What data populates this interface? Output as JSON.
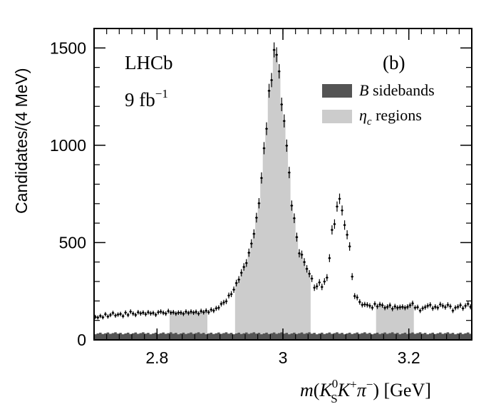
{
  "chart_data": {
    "type": "histogram",
    "experiment": "LHCb",
    "luminosity": "9 fb",
    "luminosity_exp": "−1",
    "panel_label": "(b)",
    "ylabel": "Candidates/(4 MeV)",
    "xlabel": "m(K_S^0 K^+ π^-) [GeV]",
    "xlabel_parts": {
      "m": "m",
      "open": "(",
      "K": "K",
      "sup0": "0",
      "subS": "S",
      "K2": "K",
      "plus": "+",
      "pi": "π",
      "minus": "−",
      "close": ")",
      "unit": " [GeV]"
    },
    "xlim": [
      2.7,
      3.3
    ],
    "ylim": [
      0,
      1600
    ],
    "x_ticks": [
      {
        "v": 2.8,
        "label": "2.8"
      },
      {
        "v": 3.0,
        "label": "3"
      },
      {
        "v": 3.2,
        "label": "3.2"
      }
    ],
    "y_ticks": [
      {
        "v": 0,
        "label": "0"
      },
      {
        "v": 500,
        "label": "500"
      },
      {
        "v": 1000,
        "label": "1000"
      },
      {
        "v": 1500,
        "label": "1500"
      }
    ],
    "bin_width": 0.004,
    "legend": [
      {
        "label_italic": "B",
        "label_rest": " sidebands",
        "color": "#545454"
      },
      {
        "label_italic": "η",
        "label_sub": "c",
        "label_rest": " regions",
        "color": "#cccccc"
      }
    ],
    "shaded_regions": [
      [
        2.82,
        2.88
      ],
      [
        2.924,
        3.044
      ],
      [
        3.148,
        3.208
      ]
    ],
    "sideband_level": 34,
    "data_points": [
      [
        2.702,
        118
      ],
      [
        2.706,
        115
      ],
      [
        2.71,
        123
      ],
      [
        2.714,
        116
      ],
      [
        2.718,
        132
      ],
      [
        2.722,
        120
      ],
      [
        2.726,
        128
      ],
      [
        2.73,
        138
      ],
      [
        2.734,
        125
      ],
      [
        2.738,
        130
      ],
      [
        2.742,
        133
      ],
      [
        2.746,
        122
      ],
      [
        2.75,
        140
      ],
      [
        2.754,
        128
      ],
      [
        2.758,
        145
      ],
      [
        2.762,
        135
      ],
      [
        2.766,
        128
      ],
      [
        2.77,
        142
      ],
      [
        2.774,
        136
      ],
      [
        2.778,
        140
      ],
      [
        2.782,
        132
      ],
      [
        2.786,
        142
      ],
      [
        2.79,
        136
      ],
      [
        2.794,
        138
      ],
      [
        2.798,
        129
      ],
      [
        2.802,
        142
      ],
      [
        2.806,
        145
      ],
      [
        2.81,
        139
      ],
      [
        2.814,
        135
      ],
      [
        2.818,
        148
      ],
      [
        2.822,
        140
      ],
      [
        2.826,
        142
      ],
      [
        2.83,
        135
      ],
      [
        2.834,
        140
      ],
      [
        2.838,
        140
      ],
      [
        2.842,
        134
      ],
      [
        2.846,
        145
      ],
      [
        2.85,
        138
      ],
      [
        2.854,
        145
      ],
      [
        2.858,
        140
      ],
      [
        2.862,
        144
      ],
      [
        2.866,
        135
      ],
      [
        2.87,
        148
      ],
      [
        2.874,
        142
      ],
      [
        2.878,
        150
      ],
      [
        2.882,
        142
      ],
      [
        2.886,
        155
      ],
      [
        2.89,
        150
      ],
      [
        2.894,
        162
      ],
      [
        2.898,
        165
      ],
      [
        2.902,
        185
      ],
      [
        2.906,
        192
      ],
      [
        2.91,
        198
      ],
      [
        2.914,
        228
      ],
      [
        2.918,
        235
      ],
      [
        2.922,
        258
      ],
      [
        2.926,
        292
      ],
      [
        2.93,
        310
      ],
      [
        2.934,
        345
      ],
      [
        2.938,
        375
      ],
      [
        2.942,
        395
      ],
      [
        2.946,
        448
      ],
      [
        2.95,
        495
      ],
      [
        2.954,
        545
      ],
      [
        2.958,
        628
      ],
      [
        2.962,
        702
      ],
      [
        2.966,
        832
      ],
      [
        2.97,
        985
      ],
      [
        2.974,
        1085
      ],
      [
        2.978,
        1280
      ],
      [
        2.982,
        1335
      ],
      [
        2.986,
        1490
      ],
      [
        2.99,
        1465
      ],
      [
        2.994,
        1380
      ],
      [
        2.998,
        1210
      ],
      [
        3.002,
        1125
      ],
      [
        3.006,
        998
      ],
      [
        3.01,
        860
      ],
      [
        3.014,
        690
      ],
      [
        3.018,
        625
      ],
      [
        3.022,
        528
      ],
      [
        3.026,
        445
      ],
      [
        3.03,
        438
      ],
      [
        3.034,
        400
      ],
      [
        3.038,
        365
      ],
      [
        3.042,
        340
      ],
      [
        3.046,
        315
      ],
      [
        3.05,
        268
      ],
      [
        3.054,
        275
      ],
      [
        3.058,
        295
      ],
      [
        3.062,
        272
      ],
      [
        3.066,
        300
      ],
      [
        3.07,
        320
      ],
      [
        3.074,
        420
      ],
      [
        3.078,
        565
      ],
      [
        3.082,
        595
      ],
      [
        3.086,
        685
      ],
      [
        3.09,
        725
      ],
      [
        3.094,
        665
      ],
      [
        3.098,
        590
      ],
      [
        3.102,
        540
      ],
      [
        3.106,
        480
      ],
      [
        3.11,
        325
      ],
      [
        3.114,
        225
      ],
      [
        3.118,
        218
      ],
      [
        3.122,
        195
      ],
      [
        3.126,
        180
      ],
      [
        3.13,
        182
      ],
      [
        3.134,
        180
      ],
      [
        3.138,
        175
      ],
      [
        3.142,
        165
      ],
      [
        3.146,
        185
      ],
      [
        3.15,
        172
      ],
      [
        3.154,
        182
      ],
      [
        3.158,
        178
      ],
      [
        3.162,
        165
      ],
      [
        3.166,
        170
      ],
      [
        3.17,
        178
      ],
      [
        3.174,
        160
      ],
      [
        3.178,
        172
      ],
      [
        3.182,
        165
      ],
      [
        3.186,
        168
      ],
      [
        3.19,
        170
      ],
      [
        3.194,
        165
      ],
      [
        3.198,
        170
      ],
      [
        3.202,
        178
      ],
      [
        3.206,
        188
      ],
      [
        3.21,
        165
      ],
      [
        3.214,
        168
      ],
      [
        3.218,
        150
      ],
      [
        3.222,
        162
      ],
      [
        3.226,
        168
      ],
      [
        3.23,
        175
      ],
      [
        3.234,
        180
      ],
      [
        3.238,
        162
      ],
      [
        3.242,
        170
      ],
      [
        3.246,
        165
      ],
      [
        3.25,
        182
      ],
      [
        3.254,
        175
      ],
      [
        3.258,
        168
      ],
      [
        3.262,
        180
      ],
      [
        3.266,
        172
      ],
      [
        3.27,
        150
      ],
      [
        3.274,
        165
      ],
      [
        3.278,
        170
      ],
      [
        3.282,
        178
      ],
      [
        3.286,
        162
      ],
      [
        3.29,
        175
      ],
      [
        3.294,
        185
      ],
      [
        3.298,
        170
      ]
    ]
  }
}
